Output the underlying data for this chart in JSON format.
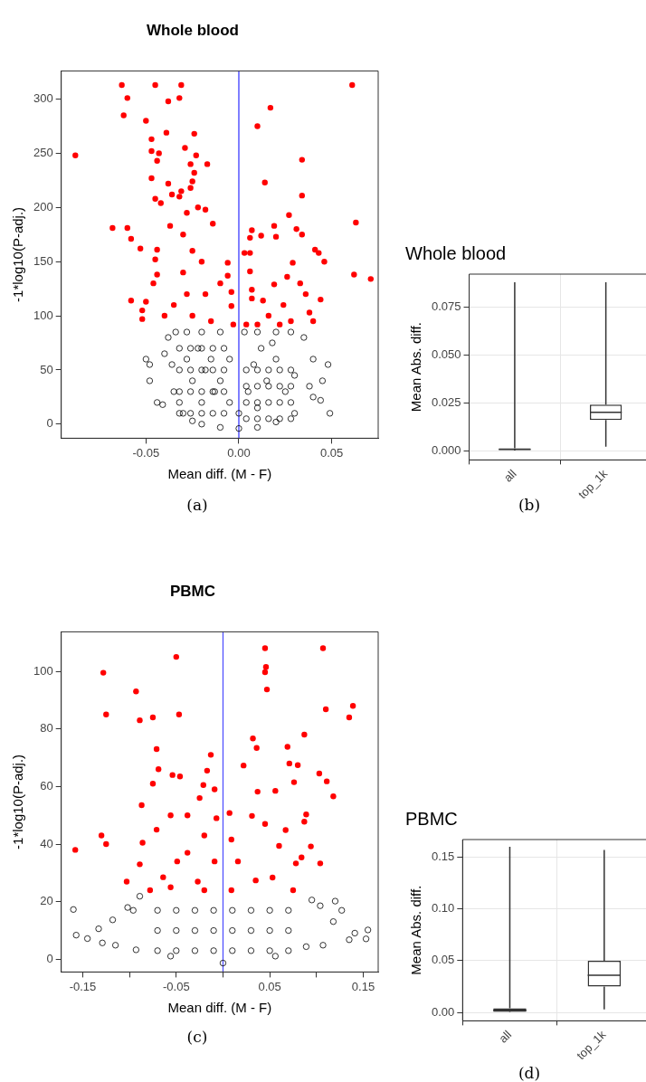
{
  "chart_data": [
    {
      "type": "scatter",
      "title": "Whole blood",
      "xlabel": "Mean diff. (M - F)",
      "ylabel": "-1*log10(P-adj.)",
      "annotations": [
        "(a)"
      ],
      "xlim": [
        -0.0956,
        0.075
      ],
      "ylim": [
        -13,
        326
      ],
      "xticks": [
        -0.05,
        {
          "value": 0,
          "label": "0.00"
        },
        0.05
      ],
      "yticks": [
        0,
        50,
        100,
        150,
        200,
        250,
        300
      ],
      "marker": "circle",
      "grid": false,
      "legend": false,
      "ref_lines": [
        {
          "axis": "x",
          "value": 0,
          "color": "#0000ff"
        }
      ],
      "series": [
        {
          "color": "#ff0000",
          "x": [
            -0.088,
            -0.063,
            -0.06,
            -0.062,
            -0.045,
            -0.038,
            -0.031,
            -0.032,
            -0.05,
            -0.047,
            -0.039,
            -0.024,
            -0.047,
            -0.043,
            -0.044,
            -0.029,
            -0.023,
            -0.017,
            -0.047,
            -0.038,
            -0.026,
            -0.024,
            -0.025,
            -0.031,
            -0.026,
            -0.045,
            -0.042,
            -0.036,
            -0.032,
            -0.068,
            -0.06,
            -0.058,
            -0.053,
            -0.044,
            -0.045,
            -0.044,
            -0.046,
            -0.058,
            -0.05,
            -0.052,
            -0.052,
            -0.04,
            -0.037,
            -0.028,
            -0.022,
            -0.018,
            -0.014,
            -0.006,
            -0.006,
            -0.004,
            -0.004,
            -0.003,
            -0.03,
            -0.025,
            -0.02,
            -0.03,
            -0.018,
            -0.025,
            -0.015,
            -0.035,
            -0.01,
            -0.028,
            0.017,
            0.01,
            0.034,
            0.014,
            0.034,
            0.027,
            0.019,
            0.031,
            0.034,
            0.012,
            0.02,
            0.007,
            0.006,
            0.003,
            0.006,
            0.006,
            0.007,
            0.007,
            0.013,
            0.019,
            0.026,
            0.029,
            0.033,
            0.041,
            0.043,
            0.046,
            0.036,
            0.044,
            0.004,
            0.01,
            0.022,
            0.028,
            0.038,
            0.04,
            0.061,
            0.063,
            0.062,
            0.071,
            0.016,
            0.024
          ],
          "values": [
            248,
            313,
            301,
            285,
            313,
            298,
            313,
            301,
            280,
            263,
            269,
            268,
            252,
            250,
            243,
            255,
            248,
            240,
            227,
            222,
            240,
            232,
            224,
            215,
            218,
            208,
            204,
            212,
            210,
            181,
            181,
            171,
            162,
            161,
            152,
            138,
            130,
            114,
            113,
            105,
            97,
            100,
            183,
            195,
            200,
            198,
            185,
            149,
            137,
            122,
            109,
            92,
            175,
            160,
            150,
            140,
            120,
            100,
            95,
            110,
            130,
            120,
            292,
            275,
            244,
            223,
            211,
            193,
            183,
            180,
            175,
            174,
            173,
            179,
            172,
            158,
            158,
            141,
            124,
            116,
            114,
            129,
            136,
            149,
            130,
            161,
            158,
            150,
            120,
            115,
            92,
            92,
            92,
            95,
            103,
            95,
            313,
            186,
            138,
            134,
            100,
            110
          ]
        },
        {
          "color": "#000000",
          "x": [
            -0.05,
            -0.048,
            -0.044,
            -0.041,
            -0.048,
            -0.04,
            -0.038,
            -0.034,
            -0.036,
            -0.035,
            -0.032,
            -0.03,
            -0.025,
            -0.02,
            -0.01,
            0,
            0.01,
            0.02,
            0.03,
            0.04,
            0.045,
            0.048,
            0.04,
            0.035,
            0.028,
            0.02,
            0.01,
            0.003,
            -0.01,
            -0.02,
            -0.028,
            -0.028,
            -0.025,
            -0.02,
            -0.015,
            -0.01,
            -0.005,
            0.005,
            0.01,
            0.015,
            0.02,
            0.025,
            0.03,
            0.018,
            -0.005,
            0.0,
            0.049,
            0.044,
            0.038,
            -0.022,
            -0.018,
            -0.013,
            0.008,
            0.012,
            -0.032,
            -0.026,
            -0.02,
            -0.014,
            -0.008,
            -0.032,
            -0.026,
            -0.02,
            -0.014,
            -0.008,
            -0.032,
            -0.026,
            -0.02,
            -0.014,
            -0.008,
            -0.032,
            -0.026,
            -0.02,
            -0.014,
            -0.008,
            0.004,
            0.01,
            0.016,
            0.022,
            0.028,
            0.004,
            0.01,
            0.016,
            0.022,
            0.028,
            0.004,
            0.01,
            0.016,
            0.022,
            0.028,
            0.004,
            0.01,
            0.016,
            0.022,
            0.028
          ],
          "values": [
            60,
            40,
            20,
            18,
            55,
            65,
            80,
            85,
            55,
            30,
            20,
            10,
            3,
            0,
            -3,
            -4,
            -3,
            2,
            10,
            25,
            40,
            55,
            60,
            80,
            85,
            85,
            85,
            85,
            85,
            85,
            85,
            60,
            40,
            20,
            60,
            40,
            20,
            30,
            15,
            40,
            60,
            30,
            45,
            75,
            60,
            10,
            10,
            22,
            35,
            70,
            50,
            30,
            55,
            70,
            10,
            10,
            10,
            10,
            10,
            30,
            30,
            30,
            30,
            30,
            50,
            50,
            50,
            50,
            50,
            70,
            70,
            70,
            70,
            70,
            5,
            5,
            5,
            5,
            5,
            20,
            20,
            20,
            20,
            20,
            35,
            35,
            35,
            35,
            35,
            50,
            50,
            50,
            50,
            50
          ]
        }
      ]
    },
    {
      "type": "box",
      "title": "Whole blood",
      "ylabel": "Mean Abs. diff.",
      "annotations": [
        "(b)"
      ],
      "categories": [
        "all",
        "top_1k"
      ],
      "color": "#333333",
      "ylim": [
        -0.0049,
        0.0922
      ],
      "yticks": [
        {
          "value": 0,
          "label": "0.000"
        },
        {
          "value": 0.025,
          "label": "0.025"
        },
        {
          "value": 0.05,
          "label": "0.050"
        },
        {
          "value": 0.075,
          "label": "0.075"
        }
      ],
      "grid": true,
      "legend": false,
      "boxes": [
        {
          "low": 0,
          "q1": 0.0003,
          "median": 0.0006,
          "q3": 0.0012,
          "high": 0.088
        },
        {
          "low": 0.002,
          "q1": 0.016,
          "median": 0.02,
          "q3": 0.024,
          "high": 0.088
        }
      ]
    },
    {
      "type": "scatter",
      "title": "PBMC",
      "xlabel": "Mean diff. (M - F)",
      "ylabel": "-1*log10(P-adj.)",
      "annotations": [
        "(c)"
      ],
      "xlim": [
        -0.173,
        0.166
      ],
      "ylim": [
        -4.4,
        113.7
      ],
      "xticks": [
        -0.15,
        {
          "value": -0.1,
          "label": null
        },
        -0.05,
        {
          "value": 0,
          "label": null
        },
        0.05,
        {
          "value": 0.1,
          "label": null
        },
        0.15
      ],
      "yticks": [
        0,
        20,
        40,
        60,
        80,
        100
      ],
      "marker": "circle",
      "grid": false,
      "legend": false,
      "ref_lines": [
        {
          "axis": "x",
          "value": 0,
          "color": "#3333ff"
        }
      ],
      "series": [
        {
          "color": "#ff0000",
          "x": [
            -0.158,
            -0.128,
            -0.125,
            -0.093,
            -0.089,
            -0.075,
            -0.05,
            -0.047,
            -0.13,
            -0.125,
            -0.071,
            -0.069,
            -0.013,
            -0.017,
            -0.054,
            -0.046,
            -0.021,
            -0.009,
            -0.025,
            -0.075,
            -0.087,
            -0.086,
            -0.103,
            -0.089,
            -0.007,
            -0.056,
            -0.038,
            -0.071,
            -0.02,
            -0.049,
            -0.064,
            -0.027,
            -0.009,
            -0.056,
            -0.02,
            -0.078,
            -0.038,
            0.045,
            0.046,
            0.045,
            0.047,
            0.107,
            0.11,
            0.139,
            0.135,
            0.087,
            0.032,
            0.036,
            0.069,
            0.022,
            0.071,
            0.08,
            0.103,
            0.111,
            0.118,
            0.037,
            0.076,
            0.056,
            0.007,
            0.031,
            0.089,
            0.087,
            0.094,
            0.104,
            0.078,
            0.009,
            0.045,
            0.067,
            0.016,
            0.053,
            0.075,
            0.009,
            0.035,
            0.06,
            0.084
          ],
          "values": [
            38,
            99.5,
            85,
            93,
            83,
            84,
            105,
            85,
            43,
            40,
            73,
            66,
            71,
            65.5,
            64,
            63.5,
            60.5,
            59,
            56,
            61,
            53.5,
            40.5,
            27,
            33,
            49,
            50,
            50,
            45,
            43,
            34,
            28.5,
            27,
            34,
            25,
            24,
            24,
            37,
            108,
            101.5,
            99.7,
            93.7,
            108,
            86.8,
            88,
            84,
            78,
            76.7,
            73.4,
            73.8,
            67.3,
            68,
            67.4,
            64.5,
            61.8,
            56.6,
            58.2,
            61.5,
            58.5,
            50.8,
            49.8,
            50.3,
            47.8,
            39.2,
            33.3,
            33.3,
            41.6,
            47,
            44.9,
            34,
            28.4,
            24,
            24,
            27.4,
            39.4,
            35.4
          ]
        },
        {
          "color": "#000000",
          "x": [
            -0.16,
            -0.157,
            -0.145,
            -0.133,
            -0.129,
            -0.118,
            -0.102,
            -0.096,
            -0.089,
            -0.115,
            0.155,
            0.141,
            0.153,
            0.135,
            0.12,
            0.127,
            0.095,
            0.104,
            0.118,
            0.107,
            0.089,
            0.056,
            0,
            -0.056,
            -0.093,
            -0.07,
            -0.05,
            -0.03,
            -0.01,
            0.01,
            0.03,
            0.05,
            0.07,
            -0.07,
            -0.05,
            -0.03,
            -0.01,
            0.01,
            0.03,
            0.05,
            0.07,
            -0.07,
            -0.05,
            -0.03,
            -0.01,
            0.01,
            0.03,
            0.05,
            0.07
          ],
          "values": [
            17.3,
            8.4,
            7.2,
            10.6,
            5.7,
            13.7,
            18,
            17,
            21.9,
            4.9,
            10.2,
            9.1,
            7.1,
            6.8,
            20.2,
            17,
            20.6,
            18.6,
            13.1,
            4.9,
            4.4,
            1.1,
            -1.3,
            1.1,
            3.3,
            3,
            3,
            3,
            3,
            3,
            3,
            3,
            3,
            10,
            10,
            10,
            10,
            10,
            10,
            10,
            10,
            17,
            17,
            17,
            17,
            17,
            17,
            17,
            17
          ]
        }
      ]
    },
    {
      "type": "box",
      "title": "PBMC",
      "ylabel": "Mean Abs. diff.",
      "annotations": [
        "(d)"
      ],
      "categories": [
        "all",
        "top_1k"
      ],
      "color": "#333333",
      "ylim": [
        -0.0081,
        0.167
      ],
      "yticks": [
        {
          "value": 0,
          "label": "0.00"
        },
        {
          "value": 0.05,
          "label": "0.05"
        },
        {
          "value": 0.1,
          "label": "0.10"
        },
        {
          "value": 0.15,
          "label": "0.15"
        }
      ],
      "grid": true,
      "legend": false,
      "boxes": [
        {
          "low": 0,
          "q1": 0.0005,
          "median": 0.002,
          "q3": 0.004,
          "high": 0.16
        },
        {
          "low": 0.003,
          "q1": 0.025,
          "median": 0.036,
          "q3": 0.05,
          "high": 0.157
        }
      ]
    }
  ]
}
